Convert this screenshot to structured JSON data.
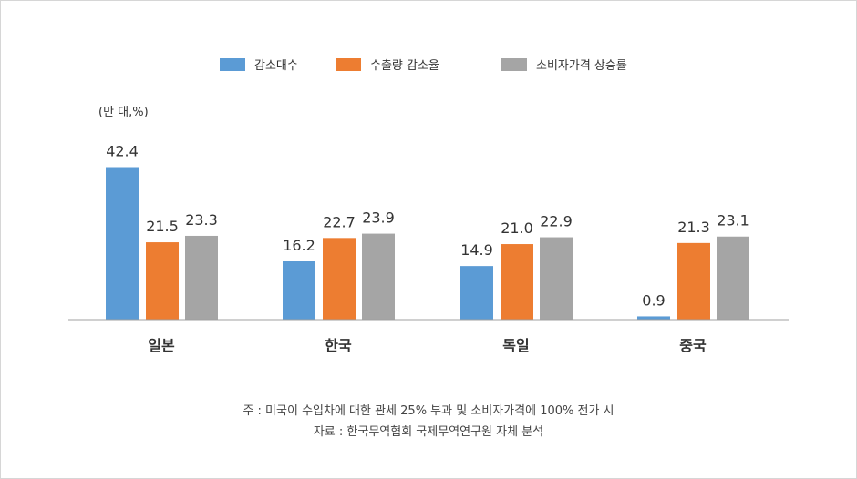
{
  "chart_data": {
    "type": "bar",
    "unit_label": "(만 대,%)",
    "categories": [
      "일본",
      "한국",
      "독일",
      "중국"
    ],
    "series": [
      {
        "name": "감소대수",
        "color": "#5b9bd5",
        "values": [
          42.4,
          16.2,
          14.9,
          0.9
        ]
      },
      {
        "name": "수출량 감소율",
        "color": "#ed7d31",
        "values": [
          21.5,
          22.7,
          21.0,
          21.3
        ]
      },
      {
        "name": "소비자가격 상승률",
        "color": "#a5a5a5",
        "values": [
          23.3,
          23.9,
          22.9,
          23.1
        ]
      }
    ],
    "value_labels": [
      [
        "42.4",
        "16.2",
        "14.9",
        "0.9"
      ],
      [
        "21.5",
        "22.7",
        "21.0",
        "21.3"
      ],
      [
        "23.3",
        "23.9",
        "22.9",
        "23.1"
      ]
    ],
    "ylim": [
      0,
      45
    ],
    "grid": false,
    "legend_position": "top-center",
    "notes": [
      "주 : 미국이 수입차에 대한 관세 25% 부과 및 소비자가격에 100% 전가 시",
      "자료 : 한국무역협회 국제무역연구원 자체 분석"
    ]
  }
}
